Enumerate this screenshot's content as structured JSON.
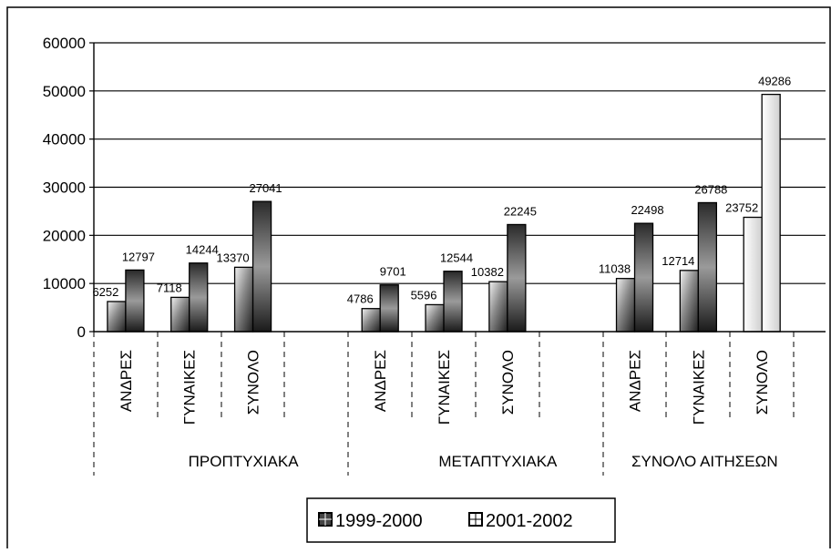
{
  "chart_data": {
    "type": "bar",
    "ylim": [
      0,
      60000
    ],
    "y_ticks": [
      "0",
      "10000",
      "20000",
      "30000",
      "40000",
      "50000",
      "60000"
    ],
    "grid": true,
    "legend_position": "bottom",
    "groups": [
      {
        "label": "ΠΡΟΠΤΥΧΙΑΚΑ",
        "categories": [
          "ΑΝΔΡΕΣ",
          "ΓΥΝΑΙΚΕΣ",
          "ΣΥΝΟΛΟ"
        ]
      },
      {
        "label": "ΜΕΤΑΠΤΥΧΙΑΚΑ",
        "categories": [
          "ΑΝΔΡΕΣ",
          "ΓΥΝΑΙΚΕΣ",
          "ΣΥΝΟΛΟ"
        ]
      },
      {
        "label": "ΣΥΝΟΛΟ ΑΙΤΗΣΕΩΝ",
        "categories": [
          "ΑΝΔΡΕΣ",
          "ΓΥΝΑΙΚΕΣ",
          "ΣΥΝΟΛΟ"
        ]
      }
    ],
    "series": [
      {
        "name": "1999-2000",
        "values": [
          6252,
          7118,
          13370,
          4786,
          5596,
          10382,
          11038,
          12714,
          23752
        ]
      },
      {
        "name": "2001-2002",
        "values": [
          12797,
          14244,
          27041,
          9701,
          12544,
          22245,
          22498,
          26788,
          49286
        ]
      }
    ],
    "series_colors": [
      "#3c3c3c",
      "#5a5a5a"
    ]
  }
}
